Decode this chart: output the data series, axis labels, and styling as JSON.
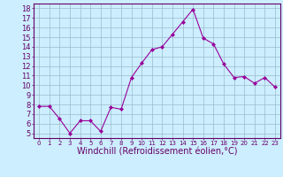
{
  "x": [
    0,
    1,
    2,
    3,
    4,
    5,
    6,
    7,
    8,
    9,
    10,
    11,
    12,
    13,
    14,
    15,
    16,
    17,
    18,
    19,
    20,
    21,
    22,
    23
  ],
  "y": [
    7.8,
    7.8,
    6.5,
    5.0,
    6.3,
    6.3,
    5.2,
    7.7,
    7.5,
    10.8,
    12.3,
    13.7,
    14.0,
    15.3,
    16.6,
    17.9,
    14.9,
    14.3,
    12.2,
    10.8,
    10.9,
    10.2,
    10.8,
    9.8
  ],
  "line_color": "#990099",
  "marker": "D",
  "marker_size": 2,
  "bg_color": "#cceeff",
  "grid_color": "#99bbcc",
  "xlabel": "Windchill (Refroidissement éolien,°C)",
  "xlabel_fontsize": 7,
  "xlim": [
    -0.5,
    23.5
  ],
  "ylim": [
    4.5,
    18.5
  ],
  "yticks": [
    5,
    6,
    7,
    8,
    9,
    10,
    11,
    12,
    13,
    14,
    15,
    16,
    17,
    18
  ],
  "xticks": [
    0,
    1,
    2,
    3,
    4,
    5,
    6,
    7,
    8,
    9,
    10,
    11,
    12,
    13,
    14,
    15,
    16,
    17,
    18,
    19,
    20,
    21,
    22,
    23
  ],
  "tick_color": "#660066",
  "spine_color": "#660066",
  "ytick_fontsize": 6,
  "xtick_fontsize": 5
}
